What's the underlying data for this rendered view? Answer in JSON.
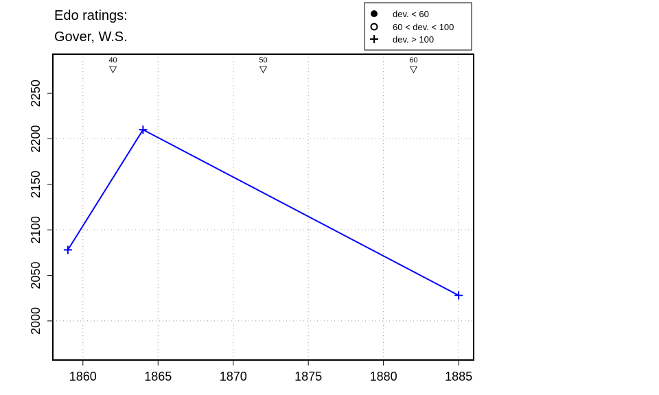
{
  "chart_data": {
    "type": "line",
    "title_lines": [
      "Edo ratings:",
      "Gover, W.S."
    ],
    "xlabel": "",
    "ylabel": "",
    "xlim": [
      1858,
      1886
    ],
    "ylim": [
      1957,
      2293
    ],
    "x_ticks": [
      1860,
      1865,
      1870,
      1875,
      1880,
      1885
    ],
    "y_ticks": [
      2000,
      2050,
      2100,
      2150,
      2200,
      2250
    ],
    "x_grid": [
      1860,
      1865,
      1870,
      1875,
      1880,
      1885
    ],
    "y_grid": [
      2000,
      2100,
      2200
    ],
    "series": [
      {
        "color": "#0000ff",
        "points": [
          {
            "x": 1859,
            "y": 2078,
            "marker": "plus"
          },
          {
            "x": 1864,
            "y": 2210,
            "marker": "plus"
          },
          {
            "x": 1885,
            "y": 2028,
            "marker": "plus"
          }
        ]
      }
    ],
    "top_markers": [
      {
        "x": 1862,
        "label": "40"
      },
      {
        "x": 1872,
        "label": "50"
      },
      {
        "x": 1882,
        "label": "60"
      }
    ],
    "legend": {
      "placement": "top-right",
      "entries": [
        {
          "marker": "filled-circle",
          "label": "dev. < 60"
        },
        {
          "marker": "open-circle",
          "label": "60 < dev. < 100"
        },
        {
          "marker": "plus",
          "label": "dev. > 100"
        }
      ]
    }
  }
}
